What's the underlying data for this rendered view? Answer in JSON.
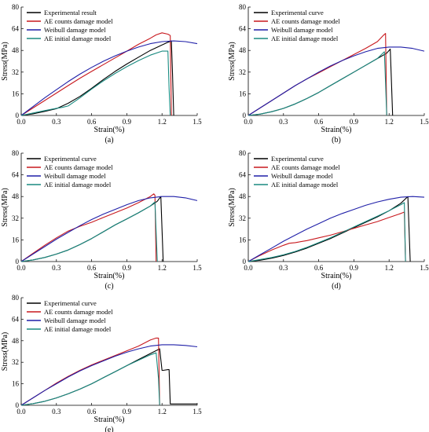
{
  "colors": {
    "experimental": "#000000",
    "ae_counts": "#c8191e",
    "weibull": "#1f1fa8",
    "ae_initial": "#1a8a80"
  },
  "chart_data": [
    {
      "type": "line",
      "panel_label": "(a)",
      "xlabel": "Strain(%)",
      "ylabel": "Stress(MPa)",
      "xlim": [
        0,
        1.5
      ],
      "ylim": [
        0,
        80
      ],
      "xticks": [
        "0.0",
        "0.3",
        "0.6",
        "0.9",
        "1.2",
        "1.5"
      ],
      "yticks": [
        "0",
        "16",
        "32",
        "48",
        "64",
        "80"
      ],
      "legend_position": "top-left",
      "series": [
        {
          "name": "Experimental result",
          "color_key": "experimental",
          "x": [
            0,
            0.1,
            0.2,
            0.3,
            0.4,
            0.5,
            0.6,
            0.7,
            0.8,
            0.9,
            1.0,
            1.1,
            1.2,
            1.25,
            1.28,
            1.29,
            1.3
          ],
          "y": [
            0,
            1.2,
            3,
            5,
            9,
            14,
            20,
            26.5,
            32.5,
            38,
            43,
            48,
            52,
            54,
            55,
            30,
            0
          ]
        },
        {
          "name": "AE counts damage model",
          "color_key": "ae_counts",
          "x": [
            0,
            0.1,
            0.2,
            0.3,
            0.4,
            0.5,
            0.6,
            0.7,
            0.8,
            0.9,
            1.0,
            1.1,
            1.15,
            1.2,
            1.25,
            1.27,
            1.28
          ],
          "y": [
            0,
            5.5,
            11,
            16.5,
            22,
            27.5,
            32.5,
            37.5,
            42.5,
            47.5,
            52.5,
            57,
            59.5,
            61,
            60,
            59,
            0
          ]
        },
        {
          "name": "Weibull damage model",
          "color_key": "weibull",
          "x": [
            0,
            0.1,
            0.2,
            0.3,
            0.4,
            0.5,
            0.6,
            0.7,
            0.8,
            0.9,
            1.0,
            1.1,
            1.2,
            1.3,
            1.4,
            1.5
          ],
          "y": [
            0,
            6.5,
            13,
            19,
            25,
            30.5,
            35.5,
            40,
            44,
            47.5,
            50.5,
            53,
            54.5,
            55,
            54.5,
            53
          ]
        },
        {
          "name": "AE initial damage model",
          "color_key": "ae_initial",
          "x": [
            0,
            0.1,
            0.2,
            0.3,
            0.35,
            0.4,
            0.5,
            0.6,
            0.7,
            0.8,
            0.9,
            1.0,
            1.1,
            1.2,
            1.25,
            1.26,
            1.27
          ],
          "y": [
            0,
            1.8,
            3.6,
            5.3,
            6,
            7,
            13,
            19.5,
            25.5,
            31,
            36,
            40.5,
            44.5,
            47.5,
            47.5,
            20,
            0
          ]
        }
      ]
    },
    {
      "type": "line",
      "panel_label": "(b)",
      "xlabel": "Strain(%)",
      "ylabel": "Stress(MPa)",
      "xlim": [
        0,
        1.5
      ],
      "ylim": [
        0,
        80
      ],
      "xticks": [
        "0.0",
        "0.3",
        "0.6",
        "0.9",
        "1.2",
        "1.5"
      ],
      "yticks": [
        "0",
        "16",
        "32",
        "48",
        "64",
        "80"
      ],
      "legend_position": "top-left",
      "series": [
        {
          "name": "Experimental curve",
          "color_key": "experimental",
          "x": [
            0,
            0.1,
            0.2,
            0.3,
            0.4,
            0.5,
            0.6,
            0.7,
            0.8,
            0.9,
            1.0,
            1.1,
            1.18,
            1.21,
            1.22,
            1.23
          ],
          "y": [
            0,
            1,
            2.8,
            5.2,
            8.5,
            12.5,
            17,
            22,
            27,
            32,
            37,
            42,
            46,
            49,
            25,
            0
          ]
        },
        {
          "name": "AE counts damage model",
          "color_key": "ae_counts",
          "x": [
            0,
            0.1,
            0.2,
            0.3,
            0.4,
            0.5,
            0.6,
            0.7,
            0.8,
            0.9,
            1.0,
            1.1,
            1.15,
            1.17,
            1.18
          ],
          "y": [
            0,
            5.5,
            11,
            16.5,
            22,
            27,
            31.5,
            36,
            40.5,
            45,
            49.5,
            54.5,
            59,
            60.5,
            0
          ]
        },
        {
          "name": "Weibull damage model",
          "color_key": "weibull",
          "x": [
            0,
            0.1,
            0.2,
            0.3,
            0.4,
            0.5,
            0.6,
            0.7,
            0.8,
            0.9,
            1.0,
            1.1,
            1.2,
            1.3,
            1.4,
            1.5
          ],
          "y": [
            0,
            5.5,
            11,
            16.5,
            22,
            27,
            32,
            36.5,
            40.5,
            44,
            47,
            49.5,
            50.5,
            50.5,
            49.5,
            47.5
          ]
        },
        {
          "name": "AE initial damage model",
          "color_key": "ae_initial",
          "x": [
            0,
            0.1,
            0.2,
            0.3,
            0.4,
            0.5,
            0.6,
            0.7,
            0.8,
            0.9,
            1.0,
            1.1,
            1.16,
            1.17,
            1.18
          ],
          "y": [
            0,
            1,
            2.8,
            5.2,
            8.5,
            12.5,
            17,
            22,
            27,
            32,
            37,
            42,
            47,
            24,
            0
          ]
        }
      ]
    },
    {
      "type": "line",
      "panel_label": "(c)",
      "xlabel": "Strain(%)",
      "ylabel": "Stress(MPa)",
      "xlim": [
        0,
        1.5
      ],
      "ylim": [
        0,
        80
      ],
      "xticks": [
        "0.0",
        "0.3",
        "0.6",
        "0.9",
        "1.2",
        "1.5"
      ],
      "yticks": [
        "0",
        "16",
        "32",
        "48",
        "64",
        "80"
      ],
      "legend_position": "top-left",
      "series": [
        {
          "name": "Experimental curve",
          "color_key": "experimental",
          "x": [
            0,
            0.1,
            0.2,
            0.3,
            0.4,
            0.5,
            0.6,
            0.7,
            0.8,
            0.9,
            1.0,
            1.1,
            1.16,
            1.19,
            1.2,
            1.21
          ],
          "y": [
            0,
            1.2,
            3,
            5.5,
            8.5,
            12.5,
            17,
            22,
            27,
            31.5,
            36,
            41,
            44.5,
            48,
            24,
            0
          ]
        },
        {
          "name": "AE counts damage model",
          "color_key": "ae_counts",
          "x": [
            0,
            0.1,
            0.2,
            0.3,
            0.4,
            0.5,
            0.6,
            0.7,
            0.8,
            0.9,
            1.0,
            1.1,
            1.13,
            1.14,
            1.15
          ],
          "y": [
            0,
            6,
            12,
            17.5,
            22.5,
            26,
            29,
            32.5,
            36,
            39.5,
            43.5,
            48,
            50,
            49,
            0
          ]
        },
        {
          "name": "Weibull damage model",
          "color_key": "weibull",
          "x": [
            0,
            0.1,
            0.2,
            0.3,
            0.4,
            0.5,
            0.6,
            0.7,
            0.8,
            0.9,
            1.0,
            1.1,
            1.2,
            1.3,
            1.4,
            1.5
          ],
          "y": [
            0,
            5.5,
            11,
            16.5,
            21.5,
            26.5,
            31,
            35,
            38.5,
            42,
            45,
            47,
            48,
            48,
            47,
            45
          ]
        },
        {
          "name": "AE initial damage model",
          "color_key": "ae_initial",
          "x": [
            0,
            0.1,
            0.2,
            0.3,
            0.4,
            0.5,
            0.6,
            0.7,
            0.8,
            0.9,
            1.0,
            1.1,
            1.14,
            1.15,
            1.16
          ],
          "y": [
            0,
            1.2,
            3,
            5.5,
            8.5,
            12.5,
            17,
            22,
            27,
            31.5,
            36,
            41,
            44,
            22,
            0
          ]
        }
      ]
    },
    {
      "type": "line",
      "panel_label": "(d)",
      "xlabel": "Strain(%)",
      "ylabel": "Stress(MPa)",
      "xlim": [
        0,
        1.5
      ],
      "ylim": [
        0,
        80
      ],
      "xticks": [
        "0.0",
        "0.3",
        "0.6",
        "0.9",
        "1.2",
        "1.5"
      ],
      "yticks": [
        "0",
        "16",
        "32",
        "48",
        "64",
        "80"
      ],
      "legend_position": "top-left",
      "series": [
        {
          "name": "Experimental curve",
          "color_key": "experimental",
          "x": [
            0,
            0.1,
            0.2,
            0.3,
            0.4,
            0.5,
            0.6,
            0.7,
            0.8,
            0.9,
            1.0,
            1.1,
            1.2,
            1.3,
            1.36,
            1.37,
            1.38
          ],
          "y": [
            0,
            1,
            2.5,
            4.5,
            7,
            10,
            13.5,
            17,
            21,
            25,
            29,
            33,
            37.5,
            43,
            48,
            24,
            0
          ]
        },
        {
          "name": "AE counts damage model",
          "color_key": "ae_counts",
          "x": [
            0,
            0.1,
            0.2,
            0.3,
            0.35,
            0.4,
            0.5,
            0.6,
            0.7,
            0.8,
            0.9,
            1.0,
            1.1,
            1.2,
            1.3,
            1.33,
            1.34
          ],
          "y": [
            0,
            4.5,
            8.5,
            12,
            13.5,
            14,
            15.5,
            17.5,
            19.5,
            22,
            24.5,
            27,
            29.5,
            32.5,
            35.5,
            36.5,
            0
          ]
        },
        {
          "name": "Weibull damage model",
          "color_key": "weibull",
          "x": [
            0,
            0.1,
            0.2,
            0.3,
            0.4,
            0.5,
            0.6,
            0.7,
            0.8,
            0.9,
            1.0,
            1.1,
            1.2,
            1.3,
            1.4,
            1.5
          ],
          "y": [
            0,
            5,
            10,
            15,
            19.5,
            24,
            28,
            32,
            35.5,
            38.5,
            41.5,
            44,
            46,
            47.5,
            48,
            47.5
          ]
        },
        {
          "name": "AE initial damage model",
          "color_key": "ae_initial",
          "x": [
            0,
            0.1,
            0.2,
            0.3,
            0.4,
            0.5,
            0.6,
            0.7,
            0.8,
            0.9,
            1.0,
            1.1,
            1.2,
            1.3,
            1.33,
            1.34
          ],
          "y": [
            0,
            1.5,
            3,
            5,
            7.5,
            10.5,
            14,
            17.5,
            21.5,
            25.5,
            29.5,
            33.5,
            37.5,
            42,
            43.5,
            0
          ]
        }
      ]
    },
    {
      "type": "line",
      "panel_label": "(e)",
      "xlabel": "Strain(%)",
      "ylabel": "Stress(MPa)",
      "xlim": [
        0,
        1.5
      ],
      "ylim": [
        0,
        80
      ],
      "xticks": [
        "0.0",
        "0.3",
        "0.6",
        "0.9",
        "1.2",
        "1.5"
      ],
      "yticks": [
        "0",
        "16",
        "32",
        "48",
        "64",
        "80"
      ],
      "legend_position": "top-left",
      "series": [
        {
          "name": "Experimental curve",
          "color_key": "experimental",
          "x": [
            0,
            0.1,
            0.2,
            0.3,
            0.4,
            0.5,
            0.6,
            0.7,
            0.8,
            0.9,
            1.0,
            1.1,
            1.18,
            1.2,
            1.21,
            1.25,
            1.26,
            1.27,
            1.5
          ],
          "y": [
            0,
            1.2,
            3,
            5.5,
            8.5,
            12,
            16,
            20.5,
            25,
            29.5,
            34,
            38.5,
            42,
            26,
            26,
            26.5,
            26.5,
            1,
            1
          ]
        },
        {
          "name": "AE counts damage model",
          "color_key": "ae_counts",
          "x": [
            0,
            0.1,
            0.2,
            0.3,
            0.4,
            0.5,
            0.6,
            0.7,
            0.8,
            0.9,
            1.0,
            1.1,
            1.15,
            1.17,
            1.18
          ],
          "y": [
            0,
            5.5,
            11,
            16.5,
            21.5,
            26,
            30,
            33.5,
            37,
            40.5,
            44,
            48.5,
            50,
            50,
            0
          ]
        },
        {
          "name": "Weibull damage model",
          "color_key": "weibull",
          "x": [
            0,
            0.1,
            0.2,
            0.3,
            0.4,
            0.5,
            0.6,
            0.7,
            0.8,
            0.9,
            1.0,
            1.1,
            1.2,
            1.3,
            1.4,
            1.5
          ],
          "y": [
            0,
            5.5,
            11,
            16,
            21,
            25.5,
            29.5,
            33,
            36.5,
            39.5,
            42,
            44,
            45,
            45,
            44.5,
            43.5
          ]
        },
        {
          "name": "AE initial damage model",
          "color_key": "ae_initial",
          "x": [
            0,
            0.1,
            0.2,
            0.3,
            0.4,
            0.5,
            0.6,
            0.7,
            0.8,
            0.9,
            1.0,
            1.1,
            1.15,
            1.17,
            1.18
          ],
          "y": [
            0,
            1.2,
            3,
            5.5,
            8.5,
            12,
            16,
            20.5,
            25,
            29.5,
            33.5,
            37.5,
            39,
            20,
            0
          ]
        }
      ]
    }
  ]
}
